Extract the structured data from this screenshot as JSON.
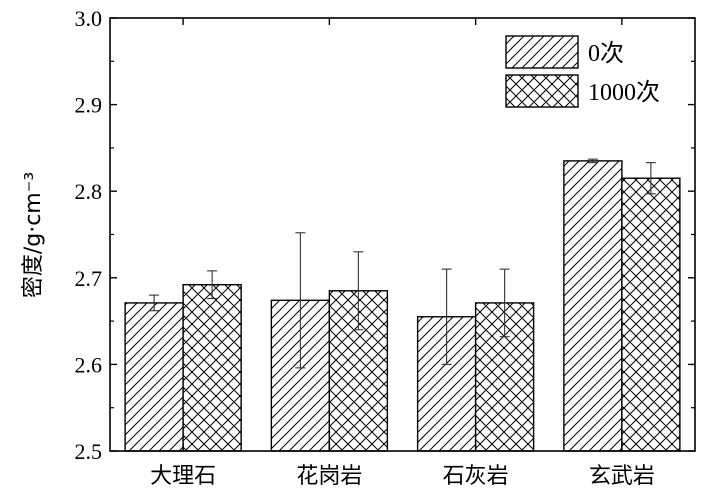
{
  "chart_data": {
    "type": "bar",
    "categories": [
      "大理石",
      "花岗岩",
      "石灰岩",
      "玄武岩"
    ],
    "series": [
      {
        "name": "0次",
        "pattern": "diagonal-hatch",
        "values": [
          2.671,
          2.674,
          2.655,
          2.835
        ],
        "errors": [
          0.009,
          0.078,
          0.055,
          0.002
        ]
      },
      {
        "name": "1000次",
        "pattern": "cross-hatch",
        "values": [
          2.692,
          2.685,
          2.671,
          2.815
        ],
        "errors": [
          0.016,
          0.045,
          0.039,
          0.018
        ]
      }
    ],
    "xlabel": "",
    "ylabel": "密度/g·cm⁻³",
    "ylim": [
      2.5,
      3.0
    ],
    "yticks": [
      "2.5",
      "2.6",
      "2.7",
      "2.8",
      "2.9",
      "3.0"
    ],
    "grid": false,
    "legend_position": "top-right",
    "colors": {
      "bar_fill": "#ffffff",
      "stroke": "#000000"
    }
  }
}
